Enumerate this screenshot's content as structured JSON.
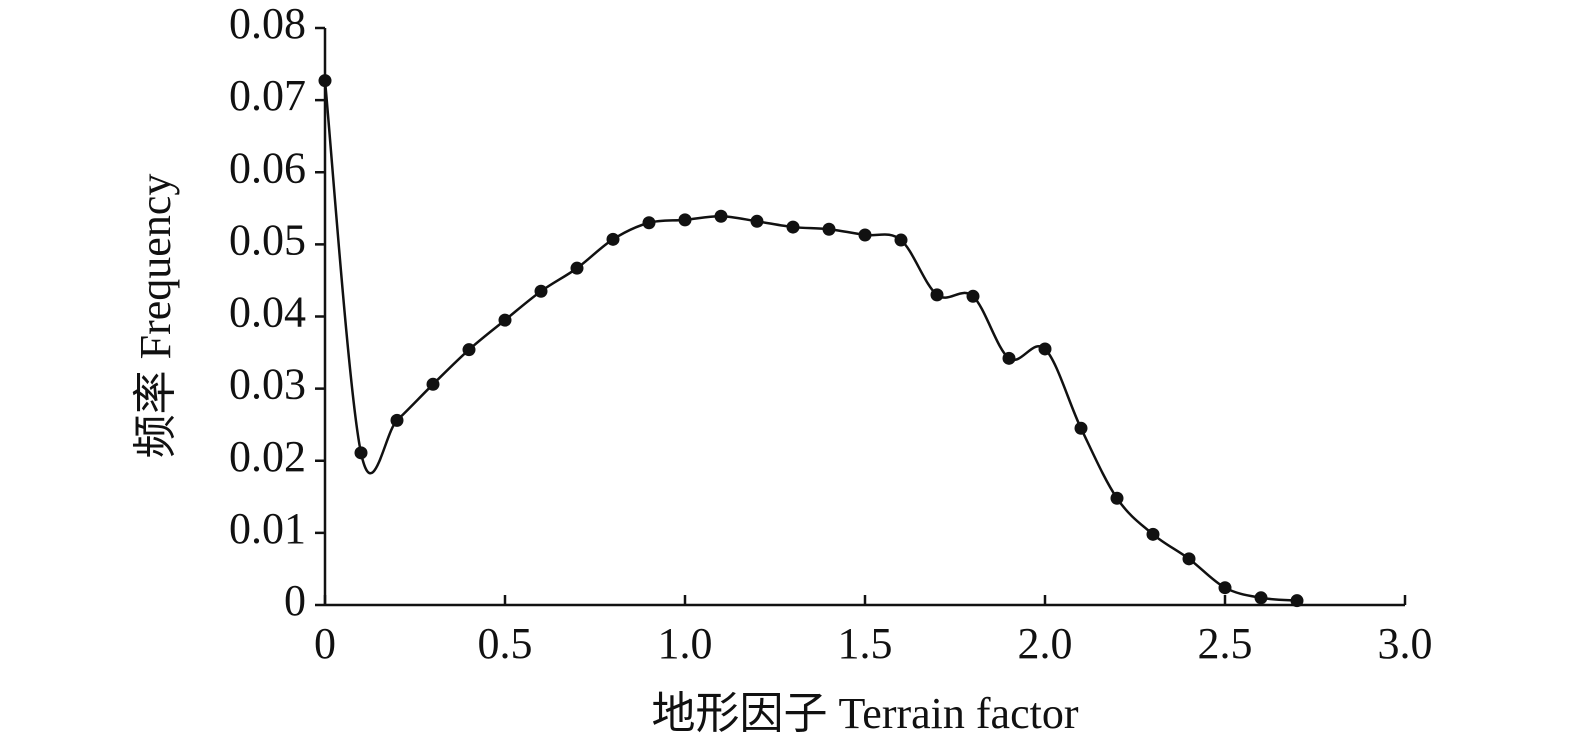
{
  "chart_data": {
    "type": "line",
    "x_label": "地形因子 Terrain factor",
    "y_label": "频率 Frequency",
    "x": [
      0,
      0.1,
      0.2,
      0.3,
      0.4,
      0.5,
      0.6,
      0.7,
      0.8,
      0.9,
      1.0,
      1.1,
      1.2,
      1.3,
      1.4,
      1.5,
      1.6,
      1.7,
      1.8,
      1.9,
      2.0,
      2.1,
      2.2,
      2.3,
      2.4,
      2.5,
      2.6,
      2.7
    ],
    "series": [
      {
        "color": "#111111",
        "values": [
          0.0727,
          0.0211,
          0.0256,
          0.0306,
          0.0354,
          0.0395,
          0.0435,
          0.0467,
          0.0507,
          0.053,
          0.0534,
          0.0539,
          0.0532,
          0.0524,
          0.0521,
          0.0513,
          0.0506,
          0.043,
          0.0428,
          0.0342,
          0.0355,
          0.0245,
          0.0148,
          0.0098,
          0.0064,
          0.0024,
          0.001,
          0.0006
        ]
      }
    ],
    "xlim": [
      0,
      3
    ],
    "ylim": [
      0,
      0.08
    ],
    "xticks": [
      0,
      0.5,
      {
        "value": 1,
        "label": "1.0"
      },
      1.5,
      {
        "value": 2,
        "label": "2.0"
      },
      2.5,
      {
        "value": 3,
        "label": "3.0"
      }
    ],
    "yticks": [
      0,
      0.01,
      0.02,
      0.03,
      0.04,
      0.05,
      0.06,
      0.07,
      0.08
    ],
    "smooth": true,
    "markers": true
  }
}
